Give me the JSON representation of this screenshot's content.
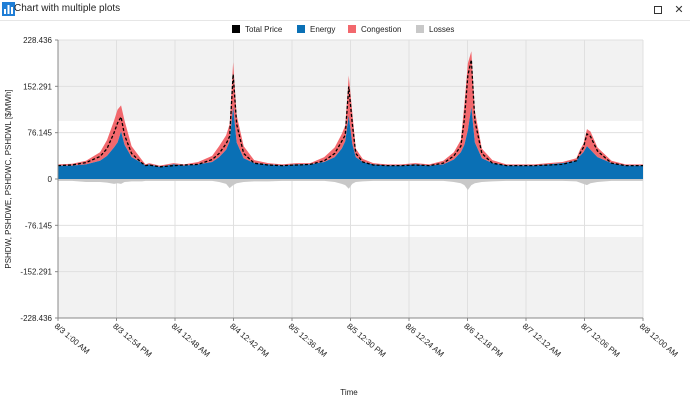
{
  "window": {
    "title": "Chart with multiple plots",
    "restore_label": "restore",
    "close_label": "✕",
    "app_icon": "chart-app-icon"
  },
  "colors": {
    "total": "#000000",
    "energy": "#0a70b5",
    "congestion": "#f2686d",
    "losses": "#c8c8c8",
    "band": "#f2f2f2"
  },
  "chart_data": {
    "type": "area",
    "title": "",
    "xlabel": "Time",
    "ylabel": "PSHDW, PSHDWE, PSHDWC, PSHDWL [$/MWh]",
    "ylim": [
      -228.436,
      228.436
    ],
    "yticks": [
      "228.436",
      "152.291",
      "76.145",
      "0",
      "-76.145",
      "-152.291",
      "-228.436"
    ],
    "ytick_values": [
      228.436,
      152.291,
      76.145,
      0,
      -76.145,
      -152.291,
      -228.436
    ],
    "xlim_hours": [
      0,
      167
    ],
    "xtick_labels": [
      "8/3 1:00 AM",
      "8/3 12:54 PM",
      "8/4 12:48 AM",
      "8/4 12:42 PM",
      "8/5 12:36 AM",
      "8/5 12:30 PM",
      "8/6 12:24 AM",
      "8/6 12:18 PM",
      "8/7 12:12 AM",
      "8/7 12:06 PM",
      "8/8 12:00 AM"
    ],
    "xtick_hours": [
      0,
      16.7,
      33.4,
      50.1,
      66.8,
      83.5,
      100.2,
      116.9,
      133.6,
      150.3,
      167
    ],
    "legend_position": "top-center",
    "series": [
      {
        "name": "Total Price",
        "key": "total"
      },
      {
        "name": "Energy",
        "key": "energy"
      },
      {
        "name": "Congestion",
        "key": "congestion"
      },
      {
        "name": "Losses",
        "key": "losses"
      }
    ],
    "x_hours": [
      0,
      4,
      8,
      12,
      14,
      16,
      17,
      18,
      19,
      21,
      24,
      25,
      26,
      29,
      33,
      36,
      40,
      44,
      46,
      48,
      49,
      50,
      51,
      53,
      56,
      60,
      64,
      68,
      72,
      76,
      79,
      81,
      82,
      83,
      84,
      85,
      87,
      90,
      94,
      98,
      102,
      106,
      110,
      113,
      115,
      116,
      117,
      118,
      119,
      121,
      124,
      128,
      132,
      136,
      140,
      144,
      148,
      149,
      150,
      151,
      152,
      154,
      158,
      162,
      167
    ],
    "energy": [
      22,
      22,
      24,
      30,
      38,
      52,
      60,
      78,
      56,
      36,
      26,
      22,
      24,
      20,
      24,
      22,
      24,
      28,
      36,
      48,
      62,
      118,
      60,
      34,
      26,
      24,
      22,
      24,
      24,
      28,
      36,
      50,
      62,
      104,
      58,
      36,
      28,
      24,
      22,
      22,
      24,
      22,
      24,
      32,
      44,
      56,
      80,
      118,
      60,
      34,
      26,
      22,
      22,
      22,
      24,
      26,
      30,
      38,
      44,
      54,
      48,
      36,
      26,
      22,
      22
    ],
    "congestion": [
      2,
      3,
      6,
      14,
      26,
      44,
      54,
      43,
      40,
      18,
      5,
      2,
      2,
      2,
      2,
      2,
      4,
      10,
      18,
      24,
      28,
      74,
      45,
      20,
      5,
      2,
      2,
      2,
      2,
      8,
      16,
      24,
      26,
      66,
      52,
      14,
      5,
      2,
      2,
      2,
      2,
      2,
      6,
      12,
      20,
      66,
      110,
      92,
      52,
      16,
      5,
      2,
      2,
      2,
      2,
      2,
      4,
      10,
      14,
      28,
      30,
      16,
      4,
      2,
      2
    ],
    "total": [
      22,
      23,
      27,
      37,
      50,
      76,
      92,
      102,
      72,
      42,
      26,
      22,
      23,
      20,
      22,
      23,
      24,
      32,
      42,
      58,
      70,
      172,
      90,
      42,
      26,
      23,
      22,
      23,
      24,
      30,
      42,
      62,
      72,
      152,
      92,
      42,
      28,
      23,
      22,
      22,
      23,
      22,
      26,
      38,
      54,
      98,
      170,
      196,
      96,
      42,
      26,
      22,
      22,
      22,
      23,
      24,
      30,
      42,
      52,
      74,
      70,
      46,
      26,
      22,
      22
    ],
    "losses": [
      -3,
      -3,
      -5,
      -5,
      -6,
      -8,
      -7,
      -8,
      -5,
      -4,
      -4,
      -3,
      -3,
      -3,
      -3,
      -3,
      -3,
      -3,
      -5,
      -8,
      -15,
      -10,
      -7,
      -5,
      -4,
      -4,
      -3,
      -3,
      -3,
      -3,
      -5,
      -8,
      -10,
      -16,
      -8,
      -5,
      -4,
      -3,
      -3,
      -3,
      -3,
      -3,
      -3,
      -5,
      -7,
      -10,
      -18,
      -10,
      -7,
      -5,
      -4,
      -3,
      -3,
      -3,
      -3,
      -3,
      -4,
      -6,
      -8,
      -10,
      -7,
      -5,
      -3,
      -3,
      -3
    ]
  }
}
